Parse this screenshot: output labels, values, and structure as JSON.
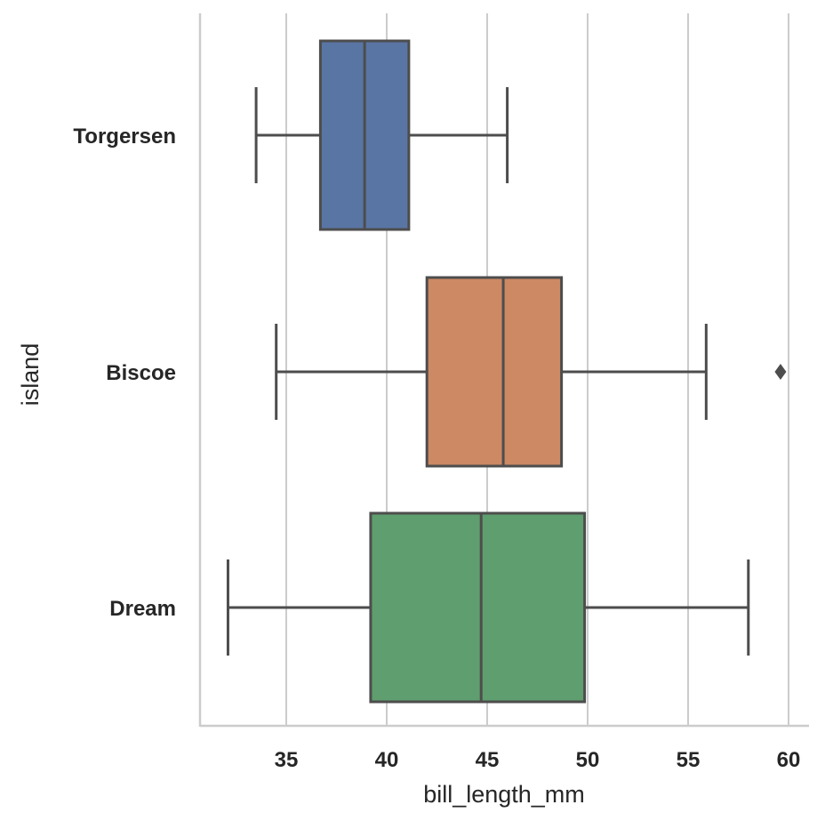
{
  "chart_data": {
    "type": "boxplot",
    "orientation": "horizontal",
    "xlabel": "bill_length_mm",
    "ylabel": "island",
    "xlim": [
      31,
      61
    ],
    "xticks": [
      35,
      40,
      45,
      50,
      55,
      60
    ],
    "grid": "vertical",
    "categories": [
      "Torgersen",
      "Biscoe",
      "Dream"
    ],
    "boxes": [
      {
        "category": "Torgersen",
        "whisker_low": 33.5,
        "q1": 36.7,
        "median": 38.9,
        "q3": 41.1,
        "whisker_high": 46.0,
        "outliers": [],
        "color": "#5975a4"
      },
      {
        "category": "Biscoe",
        "whisker_low": 34.5,
        "q1": 42.0,
        "median": 45.8,
        "q3": 48.7,
        "whisker_high": 55.9,
        "outliers": [
          59.6
        ],
        "color": "#cc8963"
      },
      {
        "category": "Dream",
        "whisker_low": 32.1,
        "q1": 39.2,
        "median": 44.7,
        "q3": 49.85,
        "whisker_high": 58.0,
        "outliers": [],
        "color": "#5f9e6e"
      }
    ],
    "line_color": "#4d4d4d",
    "grid_color": "#cccccc"
  }
}
